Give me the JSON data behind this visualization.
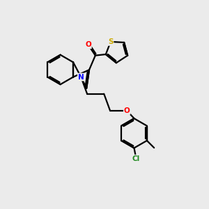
{
  "background_color": "#ebebeb",
  "bond_color": "#000000",
  "atom_colors": {
    "O": "#ff0000",
    "N": "#0000ff",
    "S": "#ccaa00",
    "Cl": "#228B22",
    "C": "#000000"
  },
  "figsize": [
    3.0,
    3.0
  ],
  "dpi": 100
}
